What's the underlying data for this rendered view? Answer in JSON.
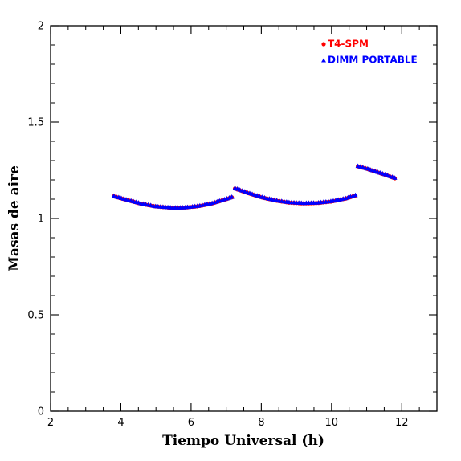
{
  "chart_data": {
    "type": "scatter",
    "title": "",
    "xlabel": "Tiempo Universal (h)",
    "ylabel": "Masas de aire",
    "xlim": [
      2,
      13
    ],
    "ylim": [
      0,
      2
    ],
    "x_ticks": [
      2,
      4,
      6,
      8,
      10,
      12
    ],
    "x_tick_labels": [
      "2",
      "4",
      "6",
      "8",
      "10",
      "12"
    ],
    "y_ticks": [
      0,
      0.5,
      1,
      1.5,
      2
    ],
    "y_tick_labels": [
      "0",
      "0.5",
      "1",
      "1.5",
      "2"
    ],
    "grid": false,
    "legend_position": "top-right",
    "series": [
      {
        "name": "T4-SPM",
        "marker": "circle",
        "color": "#ff0000",
        "segments": [
          {
            "x": [
              3.8,
              4.2,
              4.6,
              5.0,
              5.4,
              5.6,
              5.8,
              6.2,
              6.6,
              7.0,
              7.2
            ],
            "y": [
              1.115,
              1.095,
              1.075,
              1.062,
              1.056,
              1.055,
              1.056,
              1.063,
              1.078,
              1.1,
              1.112
            ]
          },
          {
            "x": [
              7.25,
              7.6,
              8.0,
              8.4,
              8.8,
              9.2,
              9.6,
              10.0,
              10.4,
              10.7
            ],
            "y": [
              1.155,
              1.133,
              1.11,
              1.093,
              1.082,
              1.078,
              1.08,
              1.088,
              1.103,
              1.12
            ]
          },
          {
            "x": [
              10.75,
              11.0,
              11.3,
              11.6,
              11.85
            ],
            "y": [
              1.27,
              1.258,
              1.24,
              1.222,
              1.205
            ]
          }
        ]
      },
      {
        "name": "DIMM PORTABLE",
        "marker": "triangle",
        "color": "#0000ff",
        "segments": [
          {
            "x": [
              3.8,
              4.2,
              4.6,
              5.0,
              5.4,
              5.6,
              5.8,
              6.2,
              6.6,
              7.0,
              7.2
            ],
            "y": [
              1.117,
              1.096,
              1.077,
              1.063,
              1.057,
              1.056,
              1.057,
              1.065,
              1.08,
              1.102,
              1.114
            ]
          },
          {
            "x": [
              7.25,
              7.6,
              8.0,
              8.4,
              8.8,
              9.2,
              9.6,
              10.0,
              10.4,
              10.7
            ],
            "y": [
              1.158,
              1.135,
              1.112,
              1.095,
              1.084,
              1.08,
              1.082,
              1.09,
              1.105,
              1.122
            ]
          },
          {
            "x": [
              10.75,
              11.0,
              11.3,
              11.6,
              11.85
            ],
            "y": [
              1.272,
              1.26,
              1.242,
              1.224,
              1.207
            ]
          }
        ]
      }
    ]
  }
}
